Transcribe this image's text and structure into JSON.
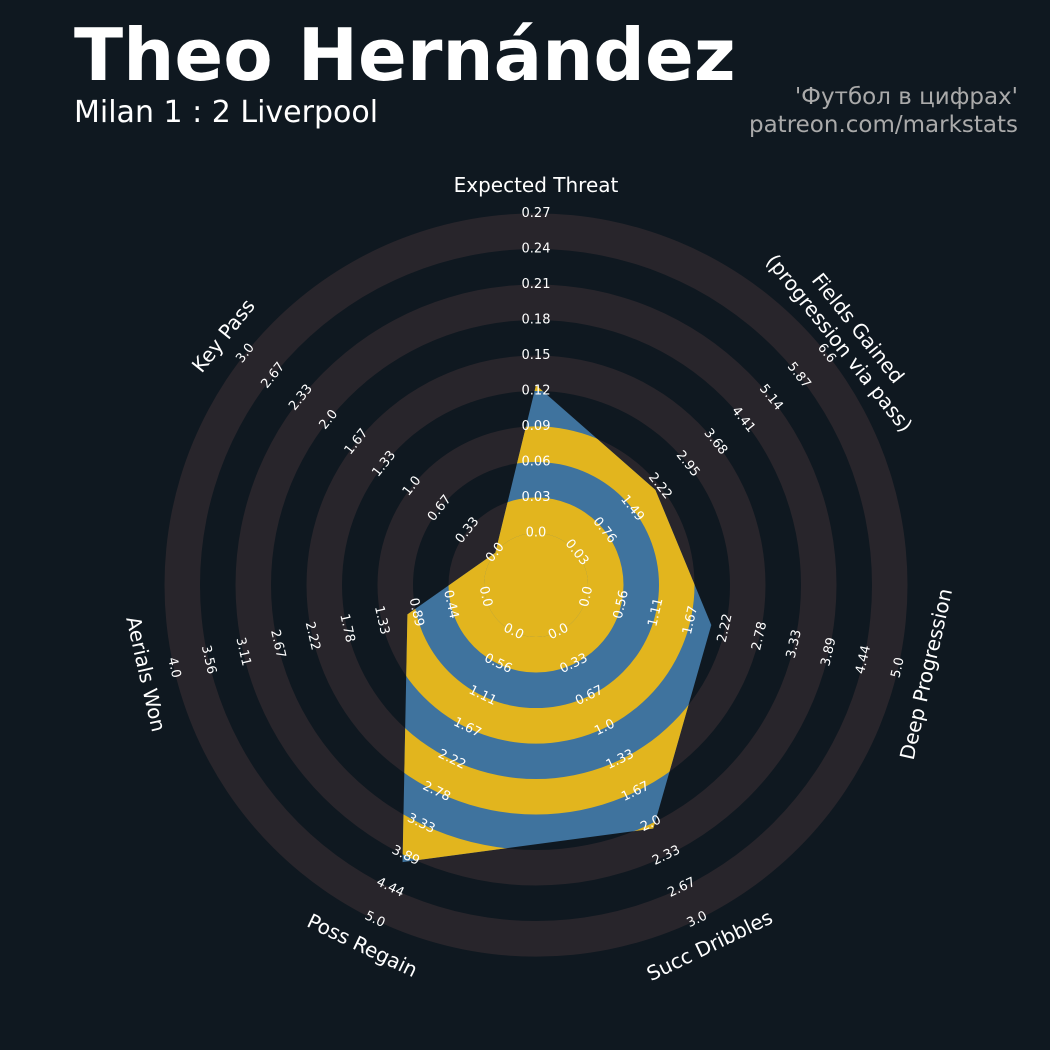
{
  "chart_data": {
    "type": "radar",
    "title": "Theo Hernández",
    "subtitle": "Milan 1 : 2 Liverpool",
    "credits": [
      "'Футбол в цифрах'",
      "patreon.com/markstats"
    ],
    "background": "#0f1820",
    "band_color": "#28252b",
    "color": "#3f739e",
    "alt_color": "#e2b51e",
    "params": [
      {
        "name": "Expected Threat",
        "ticks": [
          {
            "value": 0,
            "label": "0.0"
          },
          0.03,
          0.06,
          0.09,
          0.12,
          0.15,
          0.18,
          0.21,
          0.24,
          0.27
        ]
      },
      {
        "name": "Fields Gained\n(progression via pass)",
        "ticks": [
          0.03,
          0.76,
          1.49,
          2.22,
          2.95,
          3.68,
          4.41,
          5.14,
          5.87,
          6.6
        ]
      },
      {
        "name": "Deep Progression",
        "ticks": [
          {
            "value": 0,
            "label": "0.0"
          },
          0.56,
          1.11,
          1.67,
          2.22,
          2.78,
          3.33,
          3.89,
          4.44,
          {
            "value": 5,
            "label": "5.0"
          }
        ]
      },
      {
        "name": "Succ Dribbles",
        "ticks": [
          {
            "value": 0,
            "label": "0.0"
          },
          0.33,
          0.67,
          {
            "value": 1,
            "label": "1.0"
          },
          1.33,
          1.67,
          {
            "value": 2,
            "label": "2.0"
          },
          2.33,
          2.67,
          {
            "value": 3,
            "label": "3.0"
          }
        ]
      },
      {
        "name": "Poss Regain",
        "ticks": [
          {
            "value": 0,
            "label": "0.0"
          },
          0.56,
          1.11,
          1.67,
          2.22,
          2.78,
          3.33,
          3.89,
          4.44,
          {
            "value": 5,
            "label": "5.0"
          }
        ]
      },
      {
        "name": "Aerials Won",
        "ticks": [
          {
            "value": 0,
            "label": "0.0"
          },
          0.44,
          0.89,
          1.33,
          1.78,
          2.22,
          2.67,
          3.11,
          3.56,
          {
            "value": 4,
            "label": "4.0"
          }
        ]
      },
      {
        "name": "Key Pass",
        "ticks": [
          {
            "value": 0,
            "label": "0.0"
          },
          0.33,
          0.67,
          {
            "value": 1,
            "label": "1.0"
          },
          1.33,
          1.67,
          {
            "value": 2,
            "label": "2.0"
          },
          2.33,
          2.67,
          {
            "value": 3,
            "label": "3.0"
          }
        ]
      }
    ],
    "values": [
      0.125,
      2.1,
      2.0,
      2.05,
      4.0,
      1.0,
      0
    ]
  }
}
